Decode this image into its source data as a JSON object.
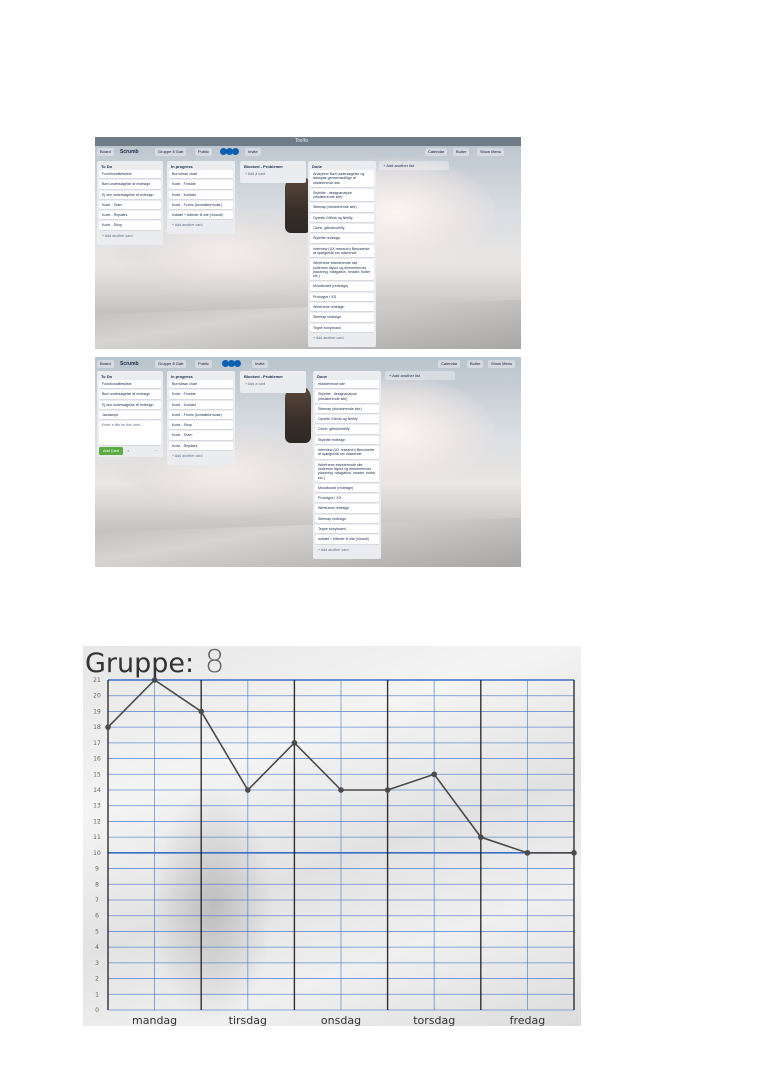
{
  "screenshot_1": {
    "window_title": "Trello",
    "toolbar": {
      "board_btn": "Board",
      "board_name": "Scrumb",
      "team": "Gruppe 8  Gab",
      "visibility": "Public",
      "invite": "Invite",
      "calendar": "Calendar",
      "butler": "Butler",
      "show_menu": "Show Menu"
    },
    "lists": [
      {
        "title": "To Do",
        "cards": [
          "Funktionalitetsliste",
          "Børl undersøgelse af redesign",
          "Ej seu undersøgelse af redesign",
          "Kode - Team",
          "Kode - Rejsilars",
          "Kode - Shop"
        ],
        "add": "+ Add another card"
      },
      {
        "title": "In progress",
        "cards": [
          "Burndown chart",
          "Kode - Forside",
          "Kode - Kontakt",
          "Kode - Forms (kontaktformular)",
          "Indsæt + billeder til site (Vossdi)"
        ],
        "add": "+ Add another card"
      },
      {
        "title": "Blocked - Problemer",
        "cards": [],
        "add": "+ Add a card"
      },
      {
        "title": "Done",
        "cards": [
          "Analysere Børl undersøgelse og danspas gennemsnitlige af eksisterende site",
          "Stylelite - designanalyse (eksisterende site)",
          "Sitemap (eksisterende site)",
          "Oprette Github og Netlify",
          "Clone, github/netlify",
          "Stylelite redesign",
          "Interview (UX research) Besvarelse af spørgsmål om udseende",
          "Wireframe eksisterende site (sidernes layout og elementernes placering: navigation, header, footer etc.)",
          "Moodboard (redesign)",
          "Prototype i XD",
          "Wireframe redesign",
          "Sitemap redesign",
          "Tegne storyboard"
        ],
        "add": "+ Add another card"
      }
    ],
    "add_list": "+ Add another list"
  },
  "screenshot_2": {
    "window_title": "Trello",
    "toolbar": {
      "board_btn": "Board",
      "board_name": "Scrumb",
      "team": "Gruppe 8  Gab",
      "visibility": "Public",
      "invite": "Invite",
      "calendar": "Calendar",
      "butler": "Butler",
      "show_menu": "Show Menu"
    },
    "lists": [
      {
        "title": "To Do",
        "cards": [
          "Funktionalitetsliste",
          "Børl undersøgelse af redesign",
          "Ej seu undersøgelse af redesign",
          "Javascript"
        ],
        "editor_placeholder": "Enter a title for this card...",
        "add_btn": "Add Card",
        "close": "×",
        "more": "···"
      },
      {
        "title": "In progress",
        "cards": [
          "Burndown chart",
          "Kode - Forside",
          "Kode - Kontakt",
          "Kode - Forms (kontaktformular)",
          "Kode - Shop",
          "Kode - Team",
          "Kode - Rejsilars"
        ],
        "add": "+ Add another card"
      },
      {
        "title": "Blocked - Problemer",
        "cards": [],
        "add": "+ Add a card"
      },
      {
        "title": "Done",
        "cards": [
          "eksisterende site",
          "Stylelite - designanalyse (eksisterende site)",
          "Sitemap (eksisterende site)",
          "Oprette Github og Netlify",
          "Clone, github/netlify",
          "Stylelite redesign",
          "Interview (UX research) Besvarelse af spørgsmål om udseende",
          "Wireframe eksisterende site (sidernes layout og elementernes placering: navigation, header, footer etc.)",
          "Moodboard (redesign)",
          "Prototype i XD",
          "Wireframe redesign",
          "Sitemap redesign",
          "Tegne storyboard",
          "Indsæt + billeder til site (Vossdi)"
        ],
        "add": "+ Add another card"
      }
    ],
    "add_list": "+ Add another list"
  },
  "burndown": {
    "title": "Gruppe:",
    "group_number": "8",
    "colors": {
      "grid": "#3b6fc4",
      "day_lines": "#111111",
      "line": "#4a4a4a"
    },
    "y_ticks": [
      "0",
      "1",
      "2",
      "3",
      "4",
      "5",
      "6",
      "7",
      "8",
      "9",
      "10",
      "11",
      "12",
      "13",
      "14",
      "15",
      "16",
      "17",
      "18",
      "19",
      "20",
      "21"
    ],
    "days": [
      "mandag",
      "tirsdag",
      "onsdag",
      "torsdag",
      "fredag"
    ],
    "chart_data": {
      "type": "line",
      "x": [
        0,
        1,
        2,
        3,
        4,
        5,
        6,
        7,
        8,
        9,
        10
      ],
      "values": [
        18,
        21,
        19,
        14,
        17,
        14,
        14,
        15,
        11,
        10,
        10
      ],
      "ylim": [
        0,
        21
      ],
      "xlabel": "",
      "ylabel": "",
      "grid": true
    }
  }
}
